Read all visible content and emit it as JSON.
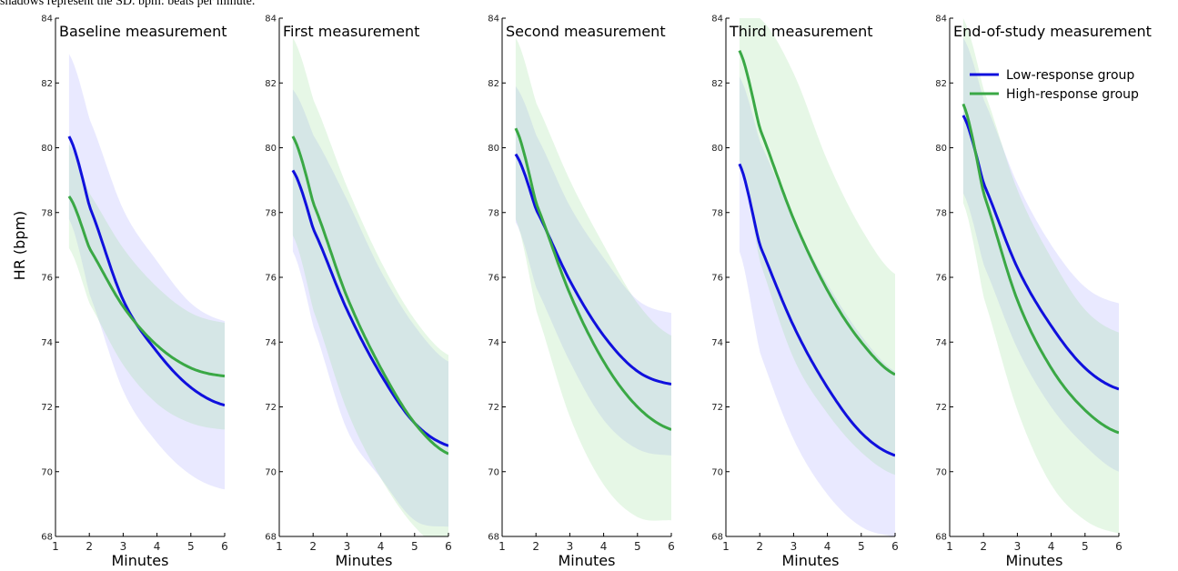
{
  "caption": "shadows represent the SD. bpm: beats per minute.",
  "ylabel": "HR (bpm)",
  "colors": {
    "low": "#1010dd",
    "high": "#3aa845",
    "low_band": "#9a9aff",
    "high_band": "#8fdc8f"
  },
  "legend": {
    "placement": "top-right",
    "items": [
      {
        "label": "Low-response group",
        "color": "#1010dd"
      },
      {
        "label": "High-response group",
        "color": "#3aa845"
      }
    ]
  },
  "chart_data": [
    {
      "type": "line",
      "title": "Baseline measurement",
      "xlabel": "Minutes",
      "ylabel": "HR (bpm)",
      "xlim": [
        1,
        6
      ],
      "ylim": [
        68,
        84
      ],
      "xticks": [
        "1",
        "2",
        "3",
        "4",
        "5",
        "6"
      ],
      "yticks": [
        "68",
        "70",
        "72",
        "74",
        "76",
        "78",
        "80",
        "82",
        "84"
      ],
      "series": [
        {
          "name": "Low-response group",
          "x": [
            1.4,
            2,
            3,
            4,
            5,
            6
          ],
          "y": [
            80.35,
            78.2,
            75.3,
            73.7,
            72.6,
            72.05
          ],
          "sd_lower": [
            77.8,
            75.5,
            72.5,
            70.9,
            69.9,
            69.45
          ],
          "sd_upper": [
            82.9,
            80.9,
            78.1,
            76.5,
            75.2,
            74.65
          ]
        },
        {
          "name": "High-response group",
          "x": [
            1.4,
            2,
            3,
            4,
            5,
            6
          ],
          "y": [
            78.5,
            76.9,
            75.1,
            73.9,
            73.2,
            72.95
          ],
          "sd_lower": [
            76.9,
            75.2,
            73.3,
            72.1,
            71.5,
            71.3
          ],
          "sd_upper": [
            80.1,
            78.6,
            76.9,
            75.7,
            74.9,
            74.6
          ]
        }
      ]
    },
    {
      "type": "line",
      "title": "First measurement",
      "xlabel": "Minutes",
      "ylabel": "HR (bpm)",
      "xlim": [
        1,
        6
      ],
      "ylim": [
        68,
        84
      ],
      "xticks": [
        "1",
        "2",
        "3",
        "4",
        "5",
        "6"
      ],
      "yticks": [
        "68",
        "70",
        "72",
        "74",
        "76",
        "78",
        "80",
        "82",
        "84"
      ],
      "series": [
        {
          "name": "Low-response group",
          "x": [
            1.4,
            2,
            3,
            4,
            5,
            6
          ],
          "y": [
            79.3,
            77.5,
            75.0,
            73.0,
            71.5,
            70.8
          ],
          "sd_lower": [
            76.8,
            74.5,
            71.3,
            69.8,
            68.5,
            68.3
          ],
          "sd_upper": [
            81.8,
            80.4,
            78.4,
            76.2,
            74.5,
            73.4
          ]
        },
        {
          "name": "High-response group",
          "x": [
            1.4,
            2,
            3,
            4,
            5,
            6
          ],
          "y": [
            80.35,
            78.3,
            75.4,
            73.2,
            71.5,
            70.55
          ],
          "sd_lower": [
            77.3,
            75.0,
            71.9,
            69.8,
            68.3,
            67.5
          ],
          "sd_upper": [
            83.4,
            81.5,
            78.8,
            76.5,
            74.7,
            73.6
          ]
        }
      ]
    },
    {
      "type": "line",
      "title": "Second measurement",
      "xlabel": "Minutes",
      "ylabel": "HR (bpm)",
      "xlim": [
        1,
        6
      ],
      "ylim": [
        68,
        84
      ],
      "xticks": [
        "1",
        "2",
        "3",
        "4",
        "5",
        "6"
      ],
      "yticks": [
        "68",
        "70",
        "72",
        "74",
        "76",
        "78",
        "80",
        "82",
        "84"
      ],
      "series": [
        {
          "name": "Low-response group",
          "x": [
            1.4,
            2,
            3,
            4,
            5,
            6
          ],
          "y": [
            79.8,
            78.1,
            75.9,
            74.2,
            73.1,
            72.7
          ],
          "sd_lower": [
            77.7,
            75.7,
            73.4,
            71.6,
            70.7,
            70.5
          ],
          "sd_upper": [
            81.9,
            80.4,
            78.2,
            76.6,
            75.3,
            74.9
          ]
        },
        {
          "name": "High-response group",
          "x": [
            1.4,
            2,
            3,
            4,
            5,
            6
          ],
          "y": [
            80.6,
            78.3,
            75.5,
            73.4,
            72.0,
            71.3
          ],
          "sd_lower": [
            77.8,
            75.0,
            71.7,
            69.6,
            68.6,
            68.5
          ],
          "sd_upper": [
            83.4,
            81.4,
            79.0,
            77.0,
            75.2,
            74.2
          ]
        }
      ]
    },
    {
      "type": "line",
      "title": "Third measurement",
      "xlabel": "Minutes",
      "ylabel": "HR (bpm)",
      "xlim": [
        1,
        6
      ],
      "ylim": [
        68,
        84
      ],
      "xticks": [
        "1",
        "2",
        "3",
        "4",
        "5",
        "6"
      ],
      "yticks": [
        "68",
        "70",
        "72",
        "74",
        "76",
        "78",
        "80",
        "82",
        "84"
      ],
      "series": [
        {
          "name": "Low-response group",
          "x": [
            1.4,
            2,
            3,
            4,
            5,
            6
          ],
          "y": [
            79.5,
            77.0,
            74.5,
            72.6,
            71.2,
            70.5
          ],
          "sd_lower": [
            76.8,
            73.7,
            71.0,
            69.3,
            68.3,
            68.0
          ],
          "sd_upper": [
            82.2,
            80.2,
            77.8,
            75.8,
            74.2,
            73.1
          ]
        },
        {
          "name": "High-response group",
          "x": [
            1.4,
            2,
            3,
            4,
            5,
            6
          ],
          "y": [
            83.0,
            80.6,
            77.8,
            75.6,
            74.0,
            73.0
          ],
          "sd_lower": [
            79.6,
            76.5,
            73.5,
            71.8,
            70.6,
            69.9
          ],
          "sd_upper": [
            84.0,
            84.0,
            82.3,
            79.6,
            77.5,
            76.1
          ]
        }
      ]
    },
    {
      "type": "line",
      "title": "End-of-study measurement",
      "xlabel": "Minutes",
      "ylabel": "HR (bpm)",
      "xlim": [
        1,
        6
      ],
      "ylim": [
        68,
        84
      ],
      "xticks": [
        "1",
        "2",
        "3",
        "4",
        "5",
        "6"
      ],
      "yticks": [
        "68",
        "70",
        "72",
        "74",
        "76",
        "78",
        "80",
        "82",
        "84"
      ],
      "series": [
        {
          "name": "Low-response group",
          "x": [
            1.4,
            2,
            3,
            4,
            5,
            6
          ],
          "y": [
            81.0,
            78.9,
            76.3,
            74.5,
            73.2,
            72.55
          ],
          "sd_lower": [
            78.6,
            76.4,
            73.8,
            72.0,
            70.8,
            70.0
          ],
          "sd_upper": [
            83.4,
            81.5,
            78.9,
            77.0,
            75.7,
            75.2
          ]
        },
        {
          "name": "High-response group",
          "x": [
            1.4,
            2,
            3,
            4,
            5,
            6
          ],
          "y": [
            81.35,
            78.6,
            75.3,
            73.2,
            71.9,
            71.2
          ],
          "sd_lower": [
            78.3,
            75.4,
            71.9,
            69.6,
            68.5,
            68.1
          ],
          "sd_upper": [
            84.0,
            81.8,
            78.7,
            76.6,
            75.0,
            74.3
          ]
        }
      ]
    }
  ]
}
